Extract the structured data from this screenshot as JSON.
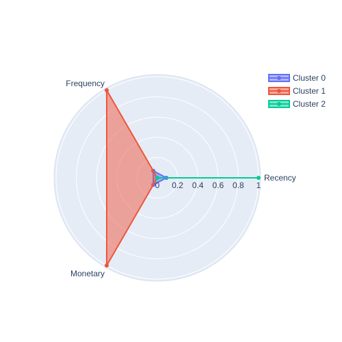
{
  "chart_data": {
    "type": "radar",
    "axes": [
      "Recency",
      "Frequency",
      "Monetary"
    ],
    "radial_range": [
      0,
      1
    ],
    "radial_ticks": [
      "0",
      "0.2",
      "0.4",
      "0.6",
      "0.8",
      "1"
    ],
    "radial_tick_values": [
      0,
      0.2,
      0.4,
      0.6,
      0.8,
      1
    ],
    "grid": true,
    "legend_position": "top-right",
    "series": [
      {
        "name": "Cluster 0",
        "values": [
          0.09,
          0.08,
          0.08
        ],
        "color": "#636efa"
      },
      {
        "name": "Cluster 1",
        "values": [
          0.0,
          1.0,
          1.0
        ],
        "color": "#ef553b"
      },
      {
        "name": "Cluster 2",
        "values": [
          1.0,
          0.0,
          0.0
        ],
        "color": "#00cc96"
      }
    ],
    "colors": {
      "polar_background": "#e5ecf6",
      "grid_line": "#ffffff",
      "text": "#2a3f5f"
    }
  }
}
